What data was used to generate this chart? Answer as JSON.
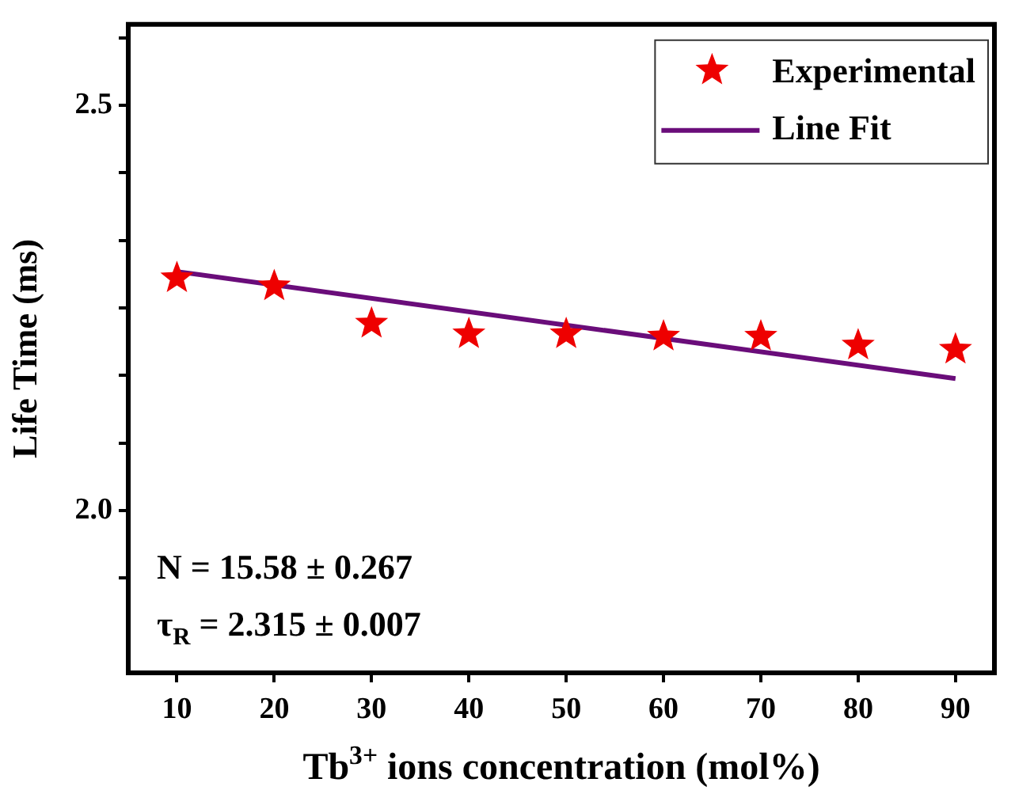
{
  "chart_data": {
    "type": "scatter",
    "xlabel": "Tb$^{3+}$ ions concentration (mol%)",
    "ylabel": "Life Time (ms)",
    "x": [
      10,
      20,
      30,
      40,
      50,
      60,
      70,
      80,
      90
    ],
    "series": [
      {
        "name": "Experimental",
        "marker": "star",
        "color": "#ee0000",
        "values": [
          2.287,
          2.277,
          2.231,
          2.218,
          2.218,
          2.215,
          2.215,
          2.204,
          2.199
        ]
      },
      {
        "name": "Line Fit",
        "type": "line",
        "color": "#6a0d7a",
        "x": [
          10,
          90
        ],
        "values": [
          2.295,
          2.163
        ]
      }
    ],
    "xlim": [
      5,
      94
    ],
    "ylim": [
      1.8,
      2.6
    ],
    "xticks": [
      10,
      20,
      30,
      40,
      50,
      60,
      70,
      80,
      90
    ],
    "yticks": [
      {
        "value": 1.917,
        "label": null
      },
      {
        "value": 2.0,
        "label": "2.0"
      },
      {
        "value": 2.083,
        "label": null
      },
      {
        "value": 2.167,
        "label": null
      },
      {
        "value": 2.25,
        "label": null
      },
      {
        "value": 2.333,
        "label": null
      },
      {
        "value": 2.417,
        "label": null
      },
      {
        "value": 2.5,
        "label": "2.5"
      },
      {
        "value": 2.583,
        "label": null
      }
    ],
    "annotations": [
      "N = 15.58 ± 0.267",
      "τ$_{R}$ = 2.315 ± 0.007"
    ],
    "legend": "top right",
    "grid": false
  }
}
